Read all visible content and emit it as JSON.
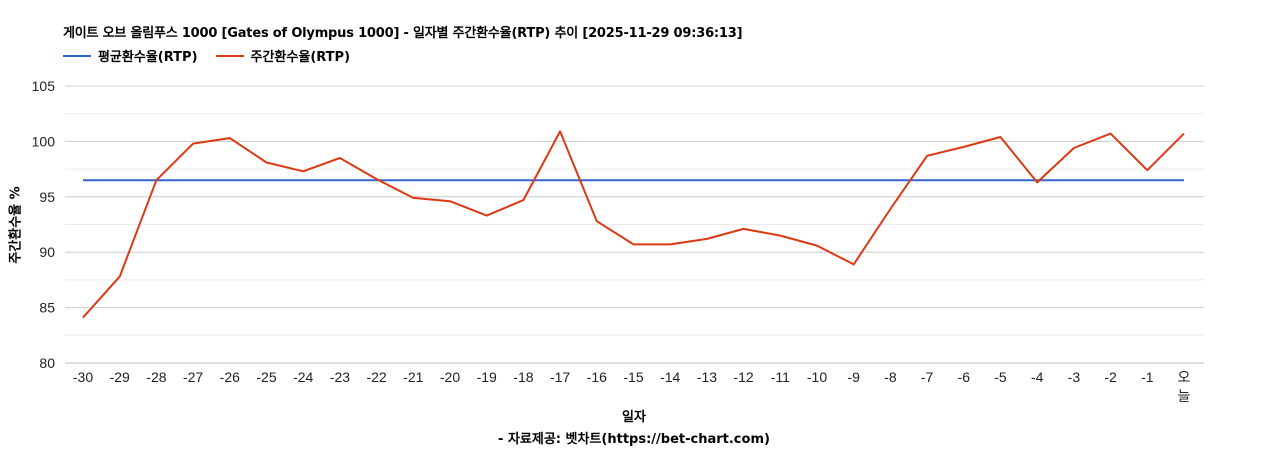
{
  "chart_data": {
    "type": "line",
    "title": "게이트 오브 올림푸스 1000 [Gates of Olympus 1000] - 일자별 주간환수율(RTP) 추이 [2025-11-29 09:36:13]",
    "xlabel": "일자",
    "ylabel": "주간환수율 %",
    "credit": "- 자료제공: 벳차트(https://bet-chart.com)",
    "ylim": [
      80,
      105
    ],
    "yticks": [
      80,
      85,
      90,
      95,
      100,
      105
    ],
    "grid": true,
    "legend_position": "top-left",
    "categories": [
      "-30",
      "-29",
      "-28",
      "-27",
      "-26",
      "-25",
      "-24",
      "-23",
      "-22",
      "-21",
      "-20",
      "-19",
      "-18",
      "-17",
      "-16",
      "-15",
      "-14",
      "-13",
      "-12",
      "-11",
      "-10",
      "-9",
      "-8",
      "-7",
      "-6",
      "-5",
      "-4",
      "-3",
      "-2",
      "-1",
      "오늘"
    ],
    "series": [
      {
        "name": "평균환수율(RTP)",
        "color": "#3366cc",
        "values": [
          96.5,
          96.5,
          96.5,
          96.5,
          96.5,
          96.5,
          96.5,
          96.5,
          96.5,
          96.5,
          96.5,
          96.5,
          96.5,
          96.5,
          96.5,
          96.5,
          96.5,
          96.5,
          96.5,
          96.5,
          96.5,
          96.5,
          96.5,
          96.5,
          96.5,
          96.5,
          96.5,
          96.5,
          96.5,
          96.5,
          96.5
        ]
      },
      {
        "name": "주간환수율(RTP)",
        "color": "#dc3912",
        "values": [
          84.1,
          87.8,
          96.5,
          99.8,
          100.3,
          98.1,
          97.3,
          98.5,
          96.6,
          94.9,
          94.6,
          93.3,
          94.7,
          100.9,
          92.8,
          90.7,
          90.7,
          91.2,
          92.1,
          91.5,
          90.6,
          88.9,
          93.9,
          98.7,
          99.5,
          100.4,
          96.3,
          99.4,
          100.7,
          97.4,
          100.7
        ]
      }
    ]
  }
}
